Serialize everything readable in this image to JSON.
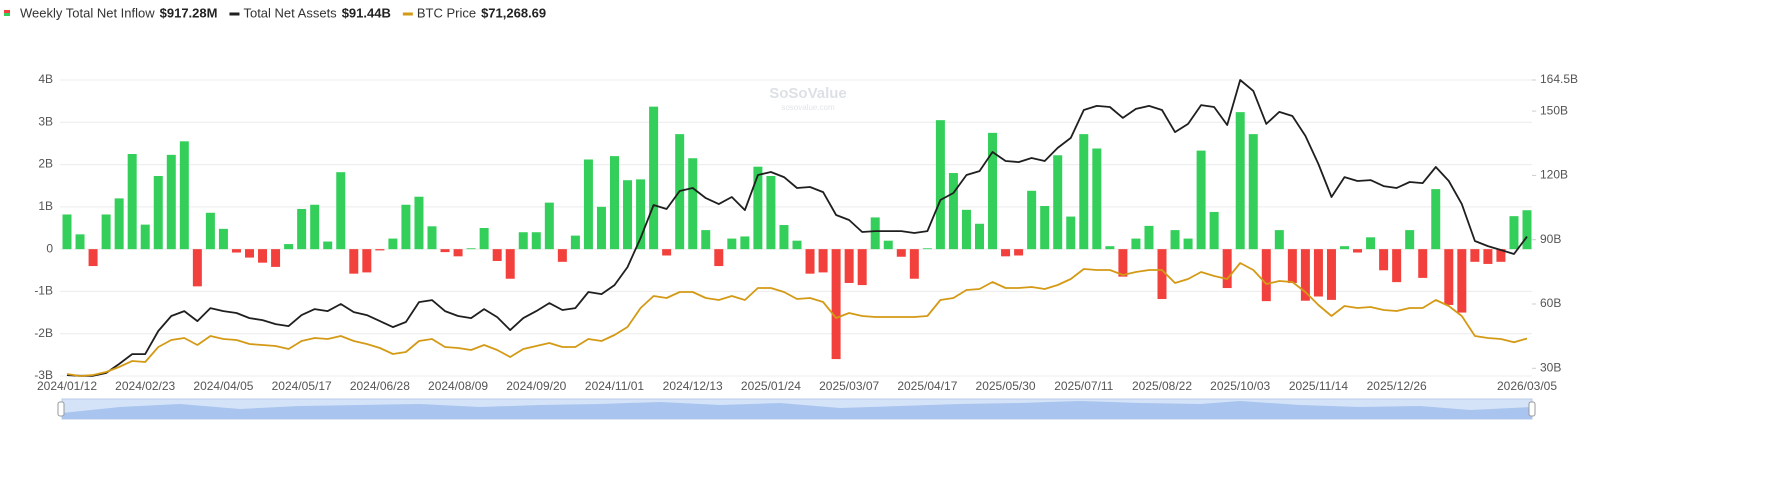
{
  "chart_data": {
    "type": "combo",
    "watermark": "SoSoValue",
    "watermark_sub": "sosovalue.com",
    "categories": [
      "2024/01/12",
      null,
      null,
      null,
      null,
      null,
      "2024/02/23",
      null,
      null,
      null,
      null,
      null,
      "2024/04/05",
      null,
      null,
      null,
      null,
      null,
      "2024/05/17",
      null,
      null,
      null,
      null,
      null,
      "2024/06/28",
      null,
      null,
      null,
      null,
      null,
      "2024/08/09",
      null,
      null,
      null,
      null,
      null,
      "2024/09/20",
      null,
      null,
      null,
      null,
      null,
      "2024/11/01",
      null,
      null,
      null,
      null,
      null,
      "2024/12/13",
      null,
      null,
      null,
      null,
      null,
      "2025/01/24",
      null,
      null,
      null,
      null,
      null,
      "2025/03/07",
      null,
      null,
      null,
      null,
      null,
      "2025/04/17",
      null,
      null,
      null,
      null,
      null,
      "2025/05/30",
      null,
      null,
      null,
      null,
      null,
      "2025/07/11",
      null,
      null,
      null,
      null,
      null,
      "2025/08/22",
      null,
      null,
      null,
      null,
      null,
      "2025/10/03",
      null,
      null,
      null,
      null,
      null,
      "2025/11/14",
      null,
      null,
      null,
      null,
      null,
      "2025/12/26",
      null,
      null,
      null,
      null,
      null,
      null,
      null,
      null,
      null,
      "2026/03/05"
    ],
    "ylim": [
      -3,
      4
    ],
    "yticks": [
      {
        "value": -3,
        "label": "-3B"
      },
      {
        "value": -2,
        "label": "-2B"
      },
      {
        "value": -1,
        "label": "-1B"
      },
      0,
      {
        "value": 1,
        "label": "1B"
      },
      {
        "value": 2,
        "label": "2B"
      },
      {
        "value": 3,
        "label": "3B"
      },
      {
        "value": 4,
        "label": "4B"
      }
    ],
    "y2lim": [
      26.4,
      164.5
    ],
    "y2ticks": [
      {
        "value": 30,
        "label": "30B"
      },
      {
        "value": 60,
        "label": "60B"
      },
      {
        "value": 90,
        "label": "90B"
      },
      {
        "value": 120,
        "label": "120B"
      },
      {
        "value": 150,
        "label": "150B"
      },
      {
        "value": 164.5,
        "label": "164.5B"
      }
    ],
    "y3lim": [
      45000,
      252200
    ],
    "grid": true,
    "series": [
      {
        "name": "Weekly Total Net Inflow",
        "current_label": "$917.28M",
        "type": "bar",
        "color": "#34cf5a",
        "negative_color": "#f2413d",
        "values": [
          0.82,
          0.35,
          -0.4,
          0.82,
          1.2,
          2.25,
          0.58,
          1.73,
          2.23,
          2.55,
          -0.88,
          0.86,
          0.48,
          -0.08,
          -0.2,
          -0.32,
          -0.42,
          0.12,
          0.95,
          1.05,
          0.18,
          1.82,
          -0.58,
          -0.55,
          -0.03,
          0.25,
          1.05,
          1.24,
          0.54,
          -0.07,
          -0.17,
          0.02,
          0.5,
          -0.28,
          -0.7,
          0.4,
          0.4,
          1.1,
          -0.3,
          0.32,
          2.12,
          1.0,
          2.2,
          1.63,
          1.65,
          3.37,
          -0.15,
          2.72,
          2.15,
          0.45,
          -0.4,
          0.25,
          0.3,
          1.95,
          1.73,
          0.57,
          0.2,
          -0.58,
          -0.55,
          -2.6,
          -0.8,
          -0.85,
          0.75,
          0.2,
          -0.18,
          -0.7,
          0.02,
          3.05,
          1.8,
          0.93,
          0.6,
          2.75,
          -0.17,
          -0.15,
          1.38,
          1.02,
          2.22,
          0.77,
          2.72,
          2.38,
          0.07,
          -0.65,
          0.25,
          0.55,
          -1.18,
          0.45,
          0.25,
          2.33,
          0.88,
          -0.92,
          3.24,
          2.72,
          -1.23,
          0.45,
          -0.8,
          -1.22,
          -1.12,
          -1.2,
          0.07,
          -0.08,
          0.28,
          -0.5,
          -0.78,
          0.45,
          -0.68,
          1.42,
          -1.32,
          -1.5,
          -0.3,
          -0.35,
          -0.3,
          0.78,
          0.92
        ]
      },
      {
        "name": "Total Net Assets",
        "current_label": "$91.44B",
        "type": "line",
        "axis": "y2",
        "color": "#1f1f1f",
        "values": [
          26.8,
          26.5,
          26.5,
          27.8,
          32.0,
          36.6,
          36.6,
          47.4,
          54.4,
          56.7,
          52.0,
          58.1,
          56.7,
          55.8,
          53.4,
          52.5,
          50.6,
          49.7,
          54.8,
          57.6,
          56.7,
          60.0,
          56.2,
          54.8,
          52.0,
          49.2,
          51.6,
          60.9,
          61.8,
          56.7,
          54.4,
          53.4,
          57.6,
          53.9,
          47.8,
          53.4,
          56.7,
          60.4,
          57.2,
          58.1,
          65.6,
          64.6,
          68.8,
          77.2,
          90.8,
          106.2,
          104.3,
          112.7,
          114.1,
          109.4,
          106.6,
          109.9,
          103.8,
          120.2,
          121.6,
          119.2,
          114.1,
          114.6,
          112.2,
          101.5,
          99.2,
          93.6,
          94.0,
          94.0,
          94.0,
          93.1,
          94.0,
          108.5,
          111.8,
          120.2,
          122.0,
          130.9,
          126.7,
          126.2,
          128.1,
          126.7,
          132.8,
          137.5,
          150.5,
          152.4,
          151.9,
          146.8,
          151.0,
          152.4,
          150.5,
          140.2,
          144.0,
          152.8,
          151.9,
          143.5,
          164.5,
          159.4,
          144.0,
          149.6,
          147.7,
          138.4,
          125.3,
          109.9,
          119.2,
          117.4,
          117.8,
          115.0,
          114.1,
          116.9,
          116.4,
          123.9,
          117.4,
          106.6,
          89.4,
          87.0,
          85.2,
          83.3,
          91.44
        ]
      },
      {
        "name": "BTC Price",
        "current_label": "$71,268.69",
        "type": "line",
        "axis": "y3",
        "color": "#d49a16",
        "values": [
          46400,
          45000,
          45700,
          47800,
          51300,
          55500,
          54800,
          65300,
          70200,
          71600,
          66700,
          73000,
          70900,
          70200,
          67400,
          66700,
          66000,
          63900,
          69500,
          71600,
          70900,
          73000,
          69500,
          67400,
          64600,
          60400,
          61800,
          69500,
          70900,
          65300,
          64600,
          63200,
          66700,
          63200,
          58300,
          63900,
          66000,
          68100,
          65300,
          65300,
          70900,
          69500,
          73700,
          79300,
          92600,
          101000,
          99600,
          103800,
          103800,
          99600,
          98200,
          101000,
          98200,
          106600,
          106600,
          103800,
          98900,
          99600,
          96800,
          85600,
          89100,
          87000,
          86300,
          86300,
          86300,
          86300,
          87000,
          98200,
          99600,
          105200,
          105900,
          110800,
          106600,
          106600,
          107300,
          105900,
          108700,
          112900,
          119900,
          119200,
          119200,
          115700,
          117800,
          119200,
          119200,
          110100,
          112900,
          117800,
          115000,
          112900,
          124100,
          119200,
          109400,
          111500,
          110800,
          103800,
          94700,
          87000,
          94000,
          92600,
          93300,
          91200,
          90500,
          92600,
          92600,
          98200,
          94000,
          87000,
          73000,
          71600,
          70900,
          68600,
          71268.69
        ]
      }
    ]
  }
}
